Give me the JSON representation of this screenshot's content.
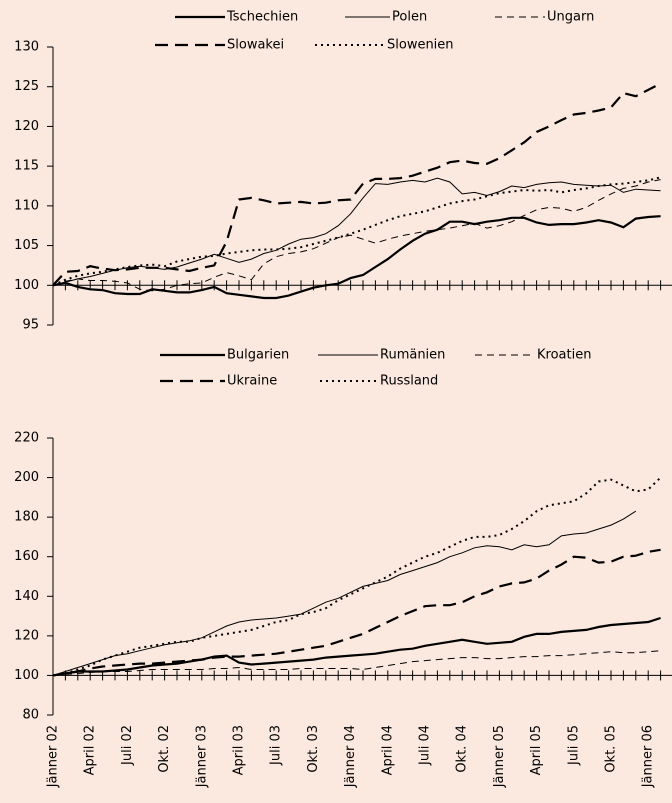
{
  "chart_data": [
    {
      "type": "line",
      "ylim": [
        95,
        130
      ],
      "yticks": [
        95,
        100,
        105,
        110,
        115,
        120,
        125,
        130
      ],
      "x_axis_at": 100,
      "categories": [
        null,
        null,
        null,
        null,
        null,
        null,
        null,
        null,
        null,
        null,
        null,
        null,
        null,
        null,
        null,
        null,
        null,
        null,
        null,
        null,
        null,
        null,
        null,
        null,
        null,
        null,
        null,
        null,
        null,
        null,
        null,
        null,
        null,
        null,
        null,
        null,
        null,
        null,
        null,
        null,
        null,
        null,
        null,
        null,
        null,
        null,
        null,
        null,
        null,
        null
      ],
      "series": [
        {
          "name": "Tschechien",
          "color": "#000000",
          "line_style": "solid-bold",
          "values": [
            100,
            100.3,
            99.8,
            99.5,
            99.4,
            99.0,
            98.9,
            98.9,
            99.5,
            99.3,
            99.1,
            99.1,
            99.4,
            99.8,
            99.0,
            98.8,
            98.6,
            98.4,
            98.4,
            98.7,
            99.2,
            99.7,
            100.0,
            100.2,
            100.9,
            101.3,
            102.3,
            103.3,
            104.5,
            105.6,
            106.5,
            107.0,
            108.0,
            108.0,
            107.7,
            108.0,
            108.2,
            108.5,
            108.5,
            107.9,
            107.6,
            107.7,
            107.7,
            107.9,
            108.2,
            107.9,
            107.3,
            108.4,
            108.6,
            108.7
          ]
        },
        {
          "name": "Polen",
          "color": "#000000",
          "line_style": "solid",
          "values": [
            100,
            100.4,
            100.8,
            101.1,
            101.5,
            101.9,
            102.2,
            102.4,
            102.2,
            102.0,
            102.3,
            102.8,
            103.3,
            103.9,
            103.4,
            102.9,
            103.3,
            104.0,
            104.4,
            105.2,
            105.8,
            106.0,
            106.5,
            107.5,
            109.0,
            111.0,
            112.8,
            112.7,
            113.0,
            113.2,
            113.0,
            113.5,
            113.0,
            111.5,
            111.7,
            111.3,
            111.8,
            112.5,
            112.3,
            112.7,
            112.9,
            113.0,
            112.7,
            112.6,
            112.5,
            112.6,
            111.7,
            112.1,
            112.0,
            111.9
          ]
        },
        {
          "name": "Ungarn",
          "color": "#000000",
          "line_style": "dashed",
          "values": [
            100,
            100.5,
            100.8,
            100.6,
            100.6,
            100.5,
            100.3,
            99.5,
            99.3,
            99.5,
            100.0,
            100.2,
            100.3,
            101.0,
            101.6,
            101.2,
            100.7,
            102.7,
            103.6,
            104.0,
            104.2,
            104.6,
            105.3,
            106.0,
            106.3,
            105.8,
            105.3,
            105.8,
            106.2,
            106.5,
            106.8,
            107.0,
            107.2,
            107.5,
            107.8,
            107.2,
            107.5,
            108.0,
            108.8,
            109.5,
            109.8,
            109.7,
            109.3,
            109.8,
            110.7,
            111.5,
            112.2,
            112.5,
            113.0,
            113.3
          ]
        },
        {
          "name": "Slowakei",
          "color": "#000000",
          "line_style": "dashed-bold",
          "values": [
            100,
            101.7,
            101.8,
            102.4,
            102.1,
            101.9,
            102.0,
            102.2,
            102.2,
            102.2,
            102.0,
            101.8,
            102.2,
            102.5,
            105.5,
            110.8,
            111.0,
            110.7,
            110.3,
            110.4,
            110.5,
            110.3,
            110.4,
            110.7,
            110.8,
            112.8,
            113.4,
            113.4,
            113.5,
            113.8,
            114.3,
            114.8,
            115.5,
            115.7,
            115.4,
            115.3,
            116.0,
            117.0,
            118.0,
            119.3,
            120.0,
            120.8,
            121.5,
            121.7,
            122.0,
            122.4,
            124.2,
            123.8,
            124.6,
            125.4
          ]
        },
        {
          "name": "Slowenien",
          "color": "#000000",
          "line_style": "dotted",
          "values": [
            100,
            100.7,
            101.2,
            101.5,
            101.7,
            102.0,
            102.3,
            102.5,
            102.6,
            102.4,
            103.0,
            103.3,
            103.6,
            103.7,
            104.0,
            104.2,
            104.4,
            104.5,
            104.5,
            104.6,
            104.8,
            105.2,
            105.6,
            106.0,
            106.5,
            107.0,
            107.6,
            108.2,
            108.7,
            109.0,
            109.3,
            109.8,
            110.3,
            110.6,
            110.8,
            111.2,
            111.6,
            111.8,
            112.0,
            111.9,
            112.0,
            111.7,
            112.0,
            112.2,
            112.5,
            112.7,
            112.8,
            113.0,
            113.2,
            113.6
          ]
        }
      ]
    },
    {
      "type": "line",
      "ylim": [
        80,
        220
      ],
      "yticks": [
        80,
        100,
        120,
        140,
        160,
        180,
        200,
        220
      ],
      "x_axis_at": 100,
      "categories": [
        "Jänner 02",
        null,
        null,
        "April 02",
        null,
        null,
        "Juli 02",
        null,
        null,
        "Okt. 02",
        null,
        null,
        "Jänner 03",
        null,
        null,
        "April 03",
        null,
        null,
        "Juli 03",
        null,
        null,
        "Okt. 03",
        null,
        null,
        "Jänner 04",
        null,
        null,
        "April 04",
        null,
        null,
        "Juli 04",
        null,
        null,
        "Okt. 04",
        null,
        null,
        "Jänner 05",
        null,
        null,
        "April 05",
        null,
        null,
        "Juli 05",
        null,
        null,
        "Okt. 05",
        null,
        null,
        "Jänner 06",
        null
      ],
      "series": [
        {
          "name": "Bulgarien",
          "color": "#000000",
          "line_style": "solid-bold",
          "values": [
            100,
            101,
            102,
            102,
            102,
            102.5,
            103,
            104,
            105,
            105.5,
            106,
            107,
            108,
            109.5,
            110,
            106.5,
            105.5,
            106,
            106.5,
            107,
            107.5,
            108,
            109,
            109.5,
            110,
            110.5,
            111,
            112,
            113,
            113.5,
            115,
            116,
            117,
            118,
            117,
            116,
            116.5,
            117,
            119.5,
            121,
            121,
            122,
            122.5,
            123,
            124.5,
            125.5,
            126,
            126.5,
            127,
            129
          ]
        },
        {
          "name": "Rumänien",
          "color": "#000000",
          "line_style": "solid",
          "values": [
            100,
            102,
            104,
            106,
            108,
            110,
            111,
            112.5,
            114,
            115.5,
            116.5,
            117.5,
            119,
            122,
            125,
            127,
            128,
            128.5,
            129,
            130,
            131,
            134,
            137,
            139,
            142,
            145,
            146.5,
            148,
            151,
            153,
            155,
            157,
            160,
            162,
            164.5,
            165.5,
            165,
            163.5,
            166,
            165,
            166,
            170.5,
            171.5,
            172,
            174,
            176,
            179,
            183,
            null,
            null
          ]
        },
        {
          "name": "Kroatien",
          "color": "#000000",
          "line_style": "dashed",
          "values": [
            100,
            100.5,
            101,
            101.5,
            102,
            102,
            102,
            102.5,
            103,
            103,
            103,
            103,
            103,
            103.5,
            103.5,
            104,
            103,
            103,
            103,
            103,
            103.5,
            103.5,
            103.5,
            103.5,
            103.5,
            103,
            104,
            105,
            106,
            107,
            107.5,
            108,
            108.5,
            109,
            109,
            108.5,
            108.5,
            109,
            109.5,
            109.5,
            110,
            110,
            110.5,
            111,
            111.5,
            112,
            111.5,
            111.5,
            112,
            112.5
          ]
        },
        {
          "name": "Ukraine",
          "color": "#000000",
          "line_style": "dashed-bold",
          "values": [
            100,
            101,
            102,
            103.5,
            104.5,
            105,
            105.5,
            106,
            106,
            106.5,
            107,
            107.5,
            108,
            109,
            109.5,
            109.5,
            110,
            110.5,
            111,
            112,
            113,
            114,
            115,
            117,
            119,
            121,
            124,
            127,
            130,
            132.5,
            135,
            135.5,
            135.5,
            137,
            140,
            142,
            145,
            146.5,
            147,
            149,
            153,
            156,
            160,
            159.5,
            157,
            157.5,
            160,
            160.5,
            162.5,
            163.5
          ]
        },
        {
          "name": "Russland",
          "color": "#000000",
          "line_style": "dotted",
          "values": [
            100,
            101,
            103,
            105,
            108,
            110,
            112,
            114,
            115,
            116,
            117,
            117,
            119,
            120,
            121,
            122,
            123,
            125,
            127,
            128,
            131,
            132,
            134,
            138,
            141,
            144,
            147,
            150,
            154,
            157,
            160,
            162,
            165,
            168,
            170,
            170,
            171,
            174,
            178,
            183,
            186,
            187,
            188,
            192,
            198,
            199,
            196,
            193,
            194,
            200
          ]
        }
      ]
    }
  ]
}
